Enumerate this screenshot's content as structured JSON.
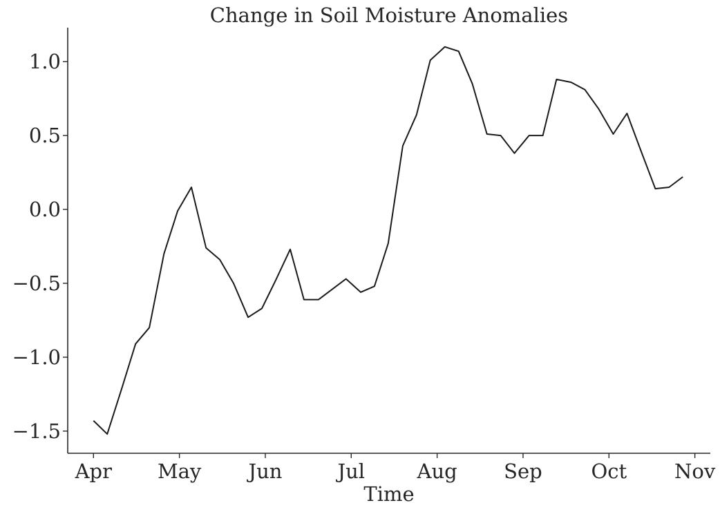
{
  "chart_data": {
    "type": "line",
    "title": "Change in Soil Moisture Anomalies",
    "xlabel": "Time",
    "ylabel": "",
    "ylim": [
      -1.65,
      1.23
    ],
    "xlim": [
      -0.3,
      7.18
    ],
    "grid": false,
    "line_color": "#1a1a1a",
    "x_ticks": [
      {
        "label": "Apr",
        "pos": 0
      },
      {
        "label": "May",
        "pos": 1
      },
      {
        "label": "Jun",
        "pos": 2
      },
      {
        "label": "Jul",
        "pos": 3
      },
      {
        "label": "Aug",
        "pos": 4
      },
      {
        "label": "Sep",
        "pos": 5
      },
      {
        "label": "Oct",
        "pos": 6
      },
      {
        "label": "Nov",
        "pos": 7
      }
    ],
    "y_ticks": [
      {
        "label": "1.0",
        "value": 1.0
      },
      {
        "label": "0.5",
        "value": 0.5
      },
      {
        "label": "0.0",
        "value": 0.0
      },
      {
        "label": "−0.5",
        "value": -0.5
      },
      {
        "label": "−1.0",
        "value": -1.0
      },
      {
        "label": "−1.5",
        "value": -1.5
      }
    ],
    "series": [
      {
        "x": [
          0.0,
          0.16,
          0.33,
          0.49,
          0.65,
          0.82,
          0.98,
          1.14,
          1.31,
          1.47,
          1.63,
          1.8,
          1.96,
          2.12,
          2.29,
          2.45,
          2.62,
          2.78,
          2.94,
          3.11,
          3.27,
          3.43,
          3.6,
          3.76,
          3.92,
          4.09,
          4.25,
          4.41,
          4.58,
          4.74,
          4.9,
          5.07,
          5.23,
          5.39,
          5.56,
          5.72,
          5.88,
          6.05,
          6.21,
          6.37,
          6.54,
          6.7,
          6.86
        ],
        "values": [
          -1.43,
          -1.52,
          -1.21,
          -0.91,
          -0.8,
          -0.3,
          -0.01,
          0.15,
          -0.26,
          -0.34,
          -0.5,
          -0.73,
          -0.67,
          -0.48,
          -0.27,
          -0.61,
          -0.61,
          -0.54,
          -0.47,
          -0.56,
          -0.52,
          -0.23,
          0.43,
          0.64,
          1.01,
          1.1,
          1.07,
          0.85,
          0.51,
          0.5,
          0.38,
          0.5,
          0.5,
          0.88,
          0.86,
          0.81,
          0.68,
          0.51,
          0.65,
          0.4,
          0.14,
          0.15,
          0.22
        ]
      }
    ]
  }
}
